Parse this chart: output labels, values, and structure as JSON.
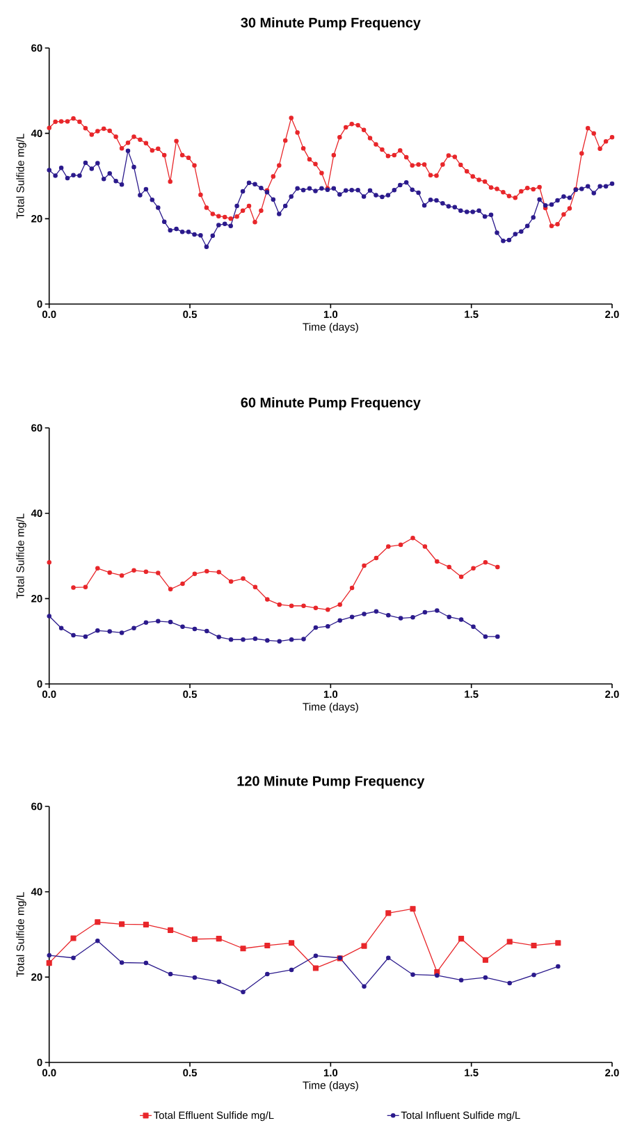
{
  "chart_data": [
    {
      "type": "line",
      "title": "30 Minute Pump Frequency",
      "xlabel": "Time (days)",
      "ylabel": "Total Sulfide mg/L",
      "marker": "circle",
      "x": [
        0,
        0.022,
        0.043,
        0.065,
        0.086,
        0.108,
        0.129,
        0.151,
        0.172,
        0.194,
        0.215,
        0.237,
        0.258,
        0.28,
        0.301,
        0.323,
        0.344,
        0.366,
        0.387,
        0.409,
        0.43,
        0.452,
        0.473,
        0.495,
        0.516,
        0.538,
        0.559,
        0.581,
        0.602,
        0.624,
        0.645,
        0.667,
        0.688,
        0.71,
        0.731,
        0.753,
        0.774,
        0.796,
        0.817,
        0.839,
        0.86,
        0.882,
        0.903,
        0.925,
        0.946,
        0.968,
        0.989,
        1.011,
        1.032,
        1.054,
        1.075,
        1.097,
        1.118,
        1.14,
        1.161,
        1.183,
        1.204,
        1.226,
        1.247,
        1.269,
        1.29,
        1.312,
        1.333,
        1.355,
        1.376,
        1.398,
        1.419,
        1.441,
        1.462,
        1.484,
        1.505,
        1.527,
        1.548,
        1.57,
        1.591,
        1.613,
        1.634,
        1.656,
        1.677,
        1.699,
        1.72,
        1.742,
        1.763,
        1.785,
        1.806,
        1.828,
        1.849,
        1.871,
        1.892,
        1.914,
        1.935,
        1.957,
        1.978,
        2.0
      ],
      "series": [
        {
          "color": "#e8262a",
          "values": [
            41.3,
            42.7,
            42.8,
            42.8,
            43.5,
            42.7,
            41.2,
            39.7,
            40.5,
            41.1,
            40.6,
            39.2,
            36.5,
            37.8,
            39.2,
            38.5,
            37.7,
            36.0,
            36.4,
            34.9,
            28.7,
            38.2,
            34.9,
            34.3,
            32.5,
            25.6,
            22.6,
            21.1,
            20.6,
            20.4,
            20.0,
            20.5,
            21.9,
            23.0,
            19.2,
            21.9,
            26.6,
            29.9,
            32.5,
            38.3,
            43.6,
            40.2,
            36.5,
            33.9,
            32.8,
            30.7,
            27.1,
            34.9,
            39.1,
            41.4,
            42.2,
            41.9,
            40.8,
            38.9,
            37.4,
            36.2,
            34.7,
            34.9,
            36.0,
            34.4,
            32.5,
            32.7,
            32.7,
            30.2,
            30.1,
            32.7,
            34.8,
            34.5,
            32.6,
            31.1,
            29.9,
            29.1,
            28.7,
            27.3,
            27.0,
            26.2,
            25.3,
            24.9,
            26.4,
            27.2,
            26.9,
            27.4,
            22.5,
            18.3,
            18.7,
            21.0,
            22.4,
            26.9,
            35.3,
            41.2,
            40.0,
            36.4,
            38.1,
            39.1
          ]
        },
        {
          "color": "#2b1a8c",
          "values": [
            31.4,
            30.1,
            31.9,
            29.5,
            30.2,
            30.1,
            33.1,
            31.7,
            33.0,
            29.3,
            30.6,
            28.8,
            28.0,
            35.9,
            32.1,
            25.5,
            26.9,
            24.4,
            22.6,
            19.3,
            17.3,
            17.6,
            16.9,
            16.9,
            16.3,
            16.1,
            13.4,
            16.0,
            18.5,
            18.8,
            18.3,
            23.0,
            26.4,
            28.4,
            28.1,
            27.2,
            26.2,
            24.5,
            21.1,
            23.0,
            25.2,
            27.1,
            26.7,
            27.1,
            26.5,
            27.1,
            26.8,
            27.1,
            25.7,
            26.6,
            26.7,
            26.7,
            25.2,
            26.6,
            25.5,
            25.1,
            25.5,
            26.7,
            27.9,
            28.5,
            26.8,
            26.1,
            23.1,
            24.4,
            24.3,
            23.6,
            22.9,
            22.7,
            21.9,
            21.6,
            21.6,
            21.9,
            20.5,
            20.9,
            16.7,
            14.8,
            15.0,
            16.4,
            17.0,
            18.3,
            20.3,
            24.5,
            23.1,
            23.3,
            24.3,
            25.2,
            24.9,
            26.8,
            27.0,
            27.6,
            26.0,
            27.6,
            27.6,
            28.2
          ]
        }
      ],
      "xlim": [
        0,
        2
      ],
      "ylim": [
        0,
        60
      ],
      "xticks": [
        {
          "value": 0,
          "label": "0.0"
        },
        {
          "value": 0.5,
          "label": "0.5"
        },
        {
          "value": 1,
          "label": "1.0"
        },
        {
          "value": 1.5,
          "label": "1.5"
        },
        {
          "value": 2,
          "label": "2.0"
        }
      ],
      "yticks": [
        0,
        20,
        40,
        60
      ]
    },
    {
      "type": "line",
      "title": "60 Minute Pump Frequency",
      "xlabel": "Time (days)",
      "ylabel": "Total Sulfide mg/L",
      "marker": "circle",
      "x": [
        0,
        0.043,
        0.086,
        0.129,
        0.172,
        0.215,
        0.258,
        0.301,
        0.344,
        0.387,
        0.431,
        0.474,
        0.517,
        0.56,
        0.603,
        0.646,
        0.689,
        0.732,
        0.775,
        0.818,
        0.861,
        0.904,
        0.947,
        0.99,
        1.033,
        1.076,
        1.119,
        1.162,
        1.205,
        1.249,
        1.292,
        1.335,
        1.378,
        1.421,
        1.464,
        1.507,
        1.55,
        1.593
      ],
      "series": [
        {
          "color": "#e8262a",
          "values": [
            28.5,
            null,
            22.6,
            22.7,
            27.1,
            26.1,
            25.4,
            26.6,
            26.3,
            26.0,
            22.2,
            23.5,
            25.8,
            26.4,
            26.2,
            24.0,
            24.7,
            22.7,
            19.8,
            18.6,
            18.3,
            18.3,
            17.8,
            17.4,
            18.6,
            22.5,
            27.7,
            29.5,
            32.2,
            32.6,
            34.2,
            32.2,
            28.7,
            27.4,
            25.1,
            27.1,
            28.5,
            27.4
          ]
        },
        {
          "color": "#2b1a8c",
          "values": [
            15.9,
            13.1,
            11.4,
            11.1,
            12.5,
            12.3,
            12.0,
            13.1,
            14.4,
            14.7,
            14.5,
            13.4,
            12.9,
            12.4,
            11.0,
            10.4,
            10.4,
            10.6,
            10.2,
            10.0,
            10.4,
            10.5,
            13.2,
            13.5,
            14.9,
            15.7,
            16.4,
            17.0,
            16.1,
            15.4,
            15.6,
            16.8,
            17.2,
            15.7,
            15.1,
            13.4,
            11.1,
            11.1
          ]
        }
      ],
      "xlim": [
        0,
        2
      ],
      "ylim": [
        0,
        60
      ],
      "xticks": [
        {
          "value": 0,
          "label": "0.0"
        },
        {
          "value": 0.5,
          "label": "0.5"
        },
        {
          "value": 1,
          "label": "1.0"
        },
        {
          "value": 1.5,
          "label": "1.5"
        },
        {
          "value": 2,
          "label": "2.0"
        }
      ],
      "yticks": [
        0,
        20,
        40,
        60
      ]
    },
    {
      "type": "line",
      "title": "120 Minute Pump Frequency",
      "xlabel": "Time (days)",
      "ylabel": "Total Sulfide mg/L",
      "marker": "circle",
      "legend": "bottom",
      "x": [
        0,
        0.086,
        0.172,
        0.258,
        0.344,
        0.431,
        0.517,
        0.603,
        0.689,
        0.775,
        0.861,
        0.947,
        1.033,
        1.119,
        1.205,
        1.292,
        1.378,
        1.464,
        1.55,
        1.636,
        1.722,
        1.808
      ],
      "series": [
        {
          "name": "Total Effluent Sulfide  mg/L",
          "color": "#e8262a",
          "marker": "square",
          "values": [
            23.3,
            29.1,
            32.9,
            32.4,
            32.3,
            31.0,
            28.9,
            29.0,
            26.7,
            27.4,
            28.0,
            22.1,
            24.4,
            27.3,
            35.0,
            36.0,
            21.2,
            29.0,
            24.0,
            28.3,
            27.4,
            28.0
          ]
        },
        {
          "name": "Total Influent Sulfide mg/L",
          "color": "#2b1a8c",
          "values": [
            25.1,
            24.5,
            28.5,
            23.4,
            23.3,
            20.7,
            19.9,
            18.9,
            16.5,
            20.7,
            21.7,
            25.0,
            24.5,
            17.8,
            24.5,
            20.6,
            20.4,
            19.3,
            19.9,
            18.6,
            20.5,
            22.5
          ]
        }
      ],
      "xlim": [
        0,
        2
      ],
      "ylim": [
        0,
        60
      ],
      "xticks": [
        {
          "value": 0,
          "label": "0.0"
        },
        {
          "value": 0.5,
          "label": "0.5"
        },
        {
          "value": 1,
          "label": "1.0"
        },
        {
          "value": 1.5,
          "label": "1.5"
        },
        {
          "value": 2,
          "label": "2.0"
        }
      ],
      "yticks": [
        0,
        20,
        40,
        60
      ]
    }
  ]
}
